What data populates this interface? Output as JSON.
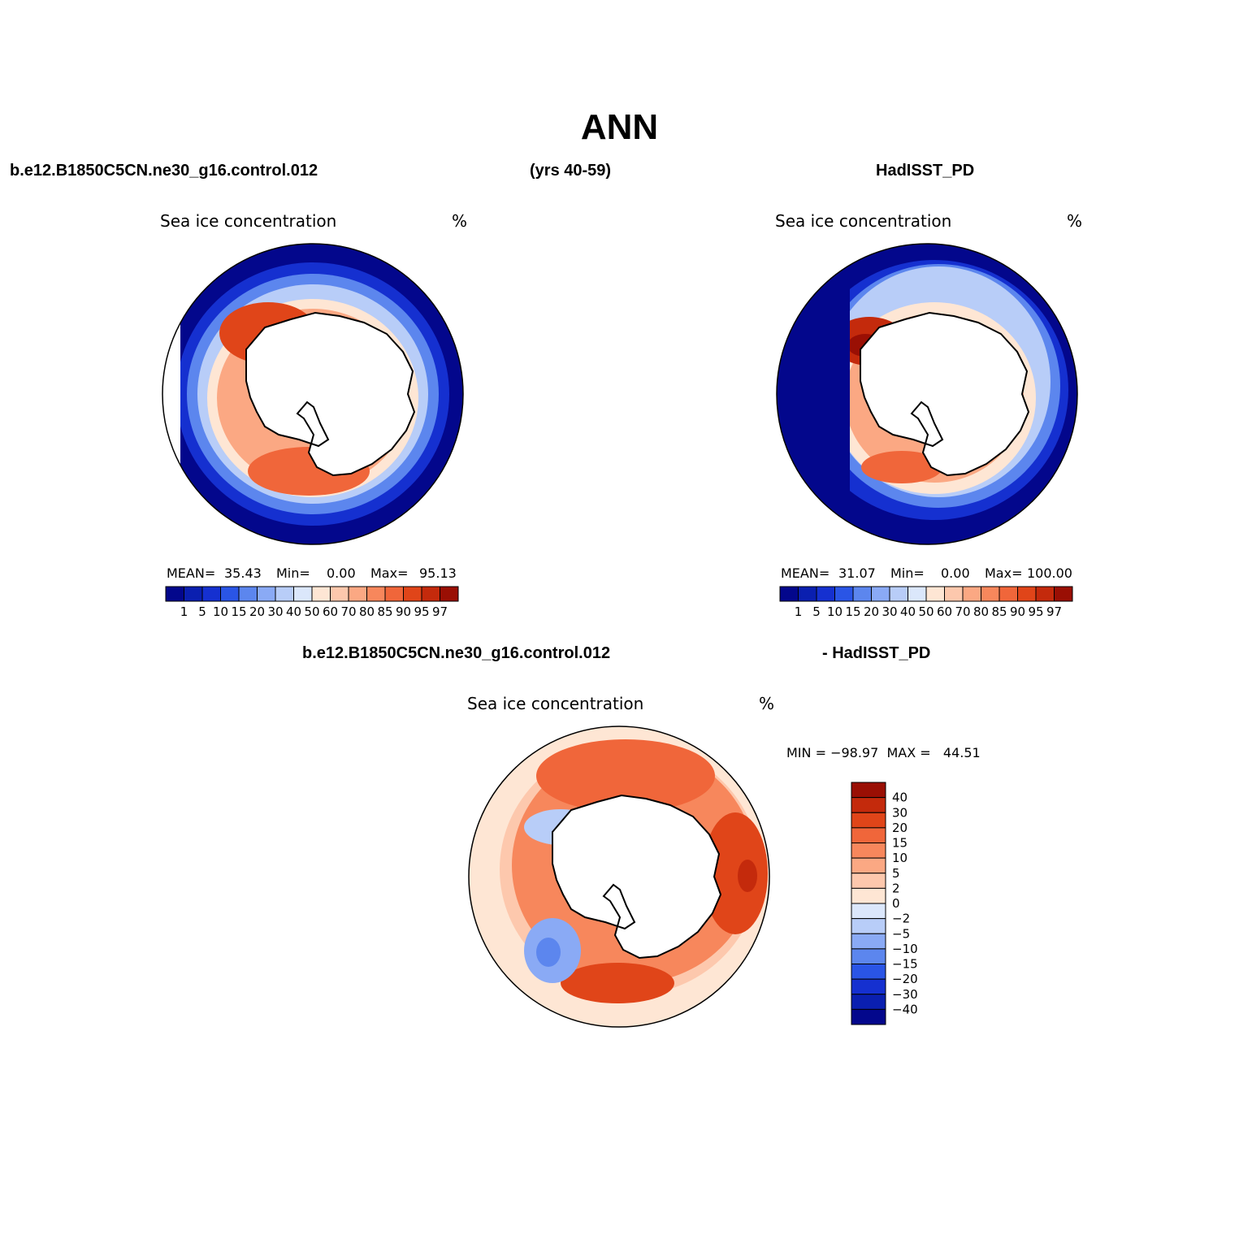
{
  "title": "ANN",
  "header": {
    "case_name": "b.e12.B1850C5CN.ne30_g16.control.012",
    "years": "(yrs 40-59)",
    "obs_name": "HadISST_PD"
  },
  "diff_header": {
    "case_name": "b.e12.B1850C5CN.ne30_g16.control.012",
    "obs_name": "- HadISST_PD"
  },
  "colors": {
    "abs_scale": [
      "#03078c",
      "#0a1fb0",
      "#1530d0",
      "#2a55e6",
      "#5c86ee",
      "#8aaaf5",
      "#b8cdf8",
      "#dbe7fb",
      "#fee6d4",
      "#fdc8ad",
      "#fba883",
      "#f7875c",
      "#f0663a",
      "#e04519",
      "#c42a0c",
      "#9a0f04"
    ],
    "diff_scale": [
      "#03078c",
      "#0a1fb0",
      "#1530d0",
      "#2a55e6",
      "#5c86ee",
      "#8aaaf5",
      "#b8cdf8",
      "#dbe7fb",
      "#fee6d4",
      "#fdc8ad",
      "#fba883",
      "#f7875c",
      "#f0663a",
      "#e04519",
      "#c42a0c",
      "#9a0f04"
    ],
    "land": "#ffffff",
    "coast": "#000000"
  },
  "panels": {
    "model": {
      "left_label": "Sea ice concentration",
      "right_label": "%",
      "stats": {
        "mean_label": "MEAN=",
        "mean": "35.43",
        "min_label": "Min=",
        "min": "0.00",
        "max_label": "Max=",
        "max": "95.13"
      }
    },
    "obs": {
      "left_label": "Sea ice concentration",
      "right_label": "%",
      "stats": {
        "mean_label": "MEAN=",
        "mean": "31.07",
        "min_label": "Min=",
        "min": "0.00",
        "max_label": "Max=",
        "max": "100.00"
      }
    },
    "diff": {
      "left_label": "Sea ice concentration",
      "right_label": "%",
      "minmax": "MIN = −98.97  MAX =   44.51"
    }
  },
  "chart_data": [
    {
      "type": "heatmap",
      "projection": "polar stereographic (south pole)",
      "field": "Sea ice concentration",
      "units": "%",
      "dataset": "b.e12.B1850C5CN.ne30_g16.control.012",
      "period": "(yrs 40-59)",
      "season": "ANN",
      "mean": 35.43,
      "min": 0.0,
      "max": 95.13,
      "colorbar_levels": [
        "1",
        "5",
        "10",
        "15",
        "20",
        "30",
        "40",
        "50",
        "60",
        "70",
        "80",
        "85",
        "90",
        "95",
        "97"
      ]
    },
    {
      "type": "heatmap",
      "projection": "polar stereographic (south pole)",
      "field": "Sea ice concentration",
      "units": "%",
      "dataset": "HadISST_PD",
      "season": "ANN",
      "mean": 31.07,
      "min": 0.0,
      "max": 100.0,
      "colorbar_levels": [
        "1",
        "5",
        "10",
        "15",
        "20",
        "30",
        "40",
        "50",
        "60",
        "70",
        "80",
        "85",
        "90",
        "95",
        "97"
      ]
    },
    {
      "type": "heatmap",
      "projection": "polar stereographic (south pole)",
      "field": "Sea ice concentration",
      "units": "%",
      "dataset": "b.e12.B1850C5CN.ne30_g16.control.012 - HadISST_PD",
      "season": "ANN",
      "min": -98.97,
      "max": 44.51,
      "colorbar_levels": [
        "40",
        "30",
        "20",
        "15",
        "10",
        "5",
        "2",
        "0",
        "−2",
        "−5",
        "−10",
        "−15",
        "−20",
        "−30",
        "−40"
      ]
    }
  ]
}
